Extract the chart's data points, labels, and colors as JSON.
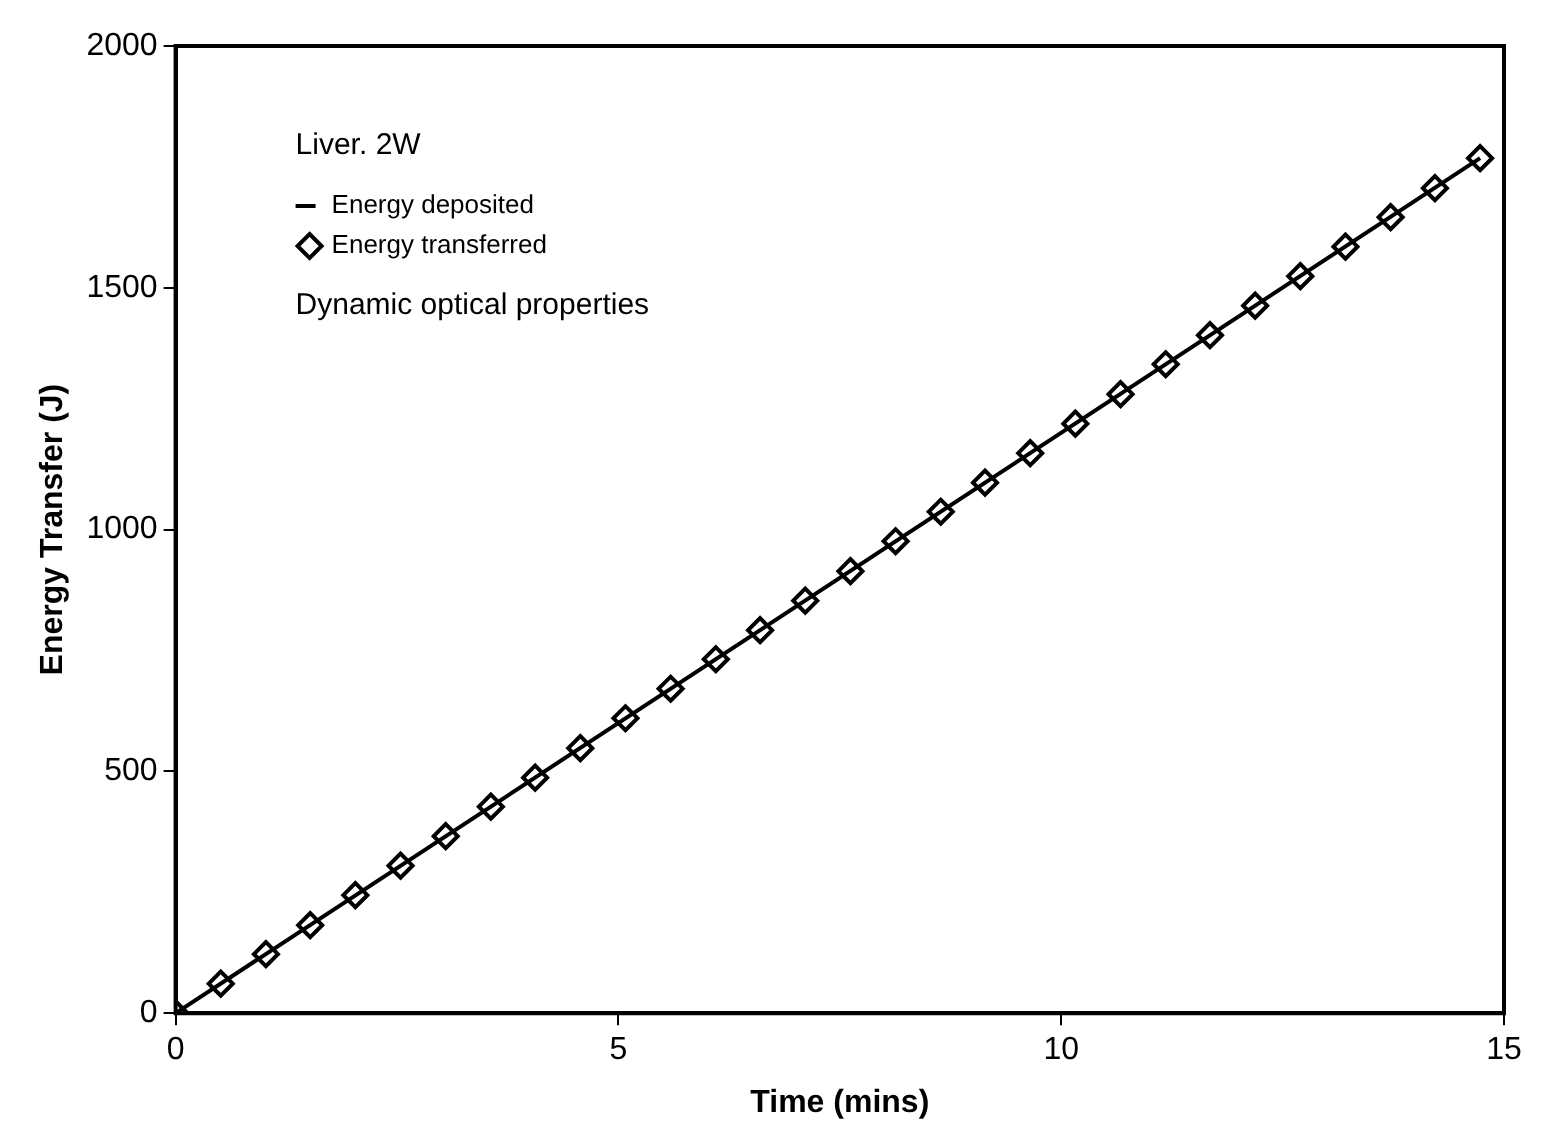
{
  "chart_data": {
    "type": "line",
    "xlabel": "Time (mins)",
    "ylabel": "Energy Transfer (J)",
    "legend_title": "Liver. 2W",
    "legend": "top left",
    "grid": false,
    "xlim": [
      0,
      15
    ],
    "xticks": [
      0,
      5,
      10,
      15
    ],
    "ylim": [
      0,
      2000
    ],
    "yticks": [
      0,
      500,
      1000,
      1500,
      2000
    ],
    "annotations": [
      "Dynamic optical properties"
    ],
    "series": [
      {
        "name": "Energy deposited",
        "type": "line",
        "color": "#000000",
        "marker": "none",
        "line_style": "solid",
        "x": [
          0,
          14.73
        ],
        "values": [
          0,
          1768
        ]
      },
      {
        "name": "Energy transferred",
        "type": "scatter",
        "color": "#000000",
        "marker": "diamond",
        "x": [
          0,
          0.51,
          1.02,
          1.52,
          2.03,
          2.54,
          3.05,
          3.56,
          4.06,
          4.57,
          5.08,
          5.59,
          6.1,
          6.6,
          7.11,
          7.62,
          8.13,
          8.64,
          9.14,
          9.65,
          10.16,
          10.67,
          11.18,
          11.68,
          12.19,
          12.7,
          13.21,
          13.72,
          14.22,
          14.73
        ],
        "values": [
          0,
          61,
          122,
          182,
          244,
          305,
          366,
          427,
          487,
          548,
          610,
          671,
          732,
          792,
          853,
          914,
          976,
          1037,
          1097,
          1158,
          1219,
          1280,
          1342,
          1402,
          1463,
          1524,
          1585,
          1646,
          1706,
          1768
        ]
      }
    ]
  }
}
